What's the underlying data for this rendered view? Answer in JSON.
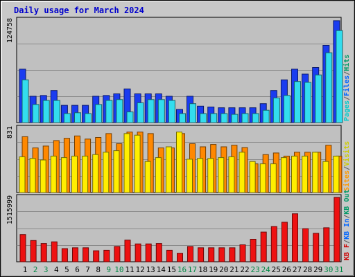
{
  "chart_data": {
    "type": "bar",
    "title": "Daily usage for March 2024",
    "days": [
      "1",
      "2",
      "3",
      "4",
      "5",
      "6",
      "7",
      "8",
      "9",
      "10",
      "11",
      "12",
      "13",
      "14",
      "15",
      "16",
      "17",
      "18",
      "19",
      "20",
      "21",
      "22",
      "23",
      "24",
      "25",
      "26",
      "27",
      "28",
      "29",
      "30",
      "31"
    ],
    "weekend_days": [
      "2",
      "3",
      "9",
      "10",
      "16",
      "17",
      "23",
      "24",
      "30",
      "31"
    ],
    "panels": [
      {
        "id": "hits",
        "ymax_label": "124758",
        "ymax": 124758,
        "legend": [
          {
            "text": "Pages",
            "color": "#00cccc"
          },
          {
            "text": "/",
            "color": "#555555"
          },
          {
            "text": "Files",
            "color": "#0066ff"
          },
          {
            "text": "/",
            "color": "#555555"
          },
          {
            "text": "Hits",
            "color": "#009966"
          }
        ],
        "series": [
          {
            "name": "Hits",
            "color": "#1a3cf0",
            "values": [
              65000,
              32000,
              33000,
              39000,
              21000,
              21000,
              21000,
              32000,
              33000,
              35000,
              41000,
              35000,
              35000,
              35000,
              32000,
              16000,
              32000,
              20000,
              19000,
              18000,
              18000,
              18000,
              18000,
              23000,
              39000,
              52000,
              65000,
              59000,
              67000,
              94000,
              124000
            ]
          },
          {
            "name": "Files",
            "color": "#1aa0e6",
            "values": [
              52000,
              22000,
              27000,
              27000,
              11000,
              12000,
              11000,
              22000,
              27000,
              28000,
              13000,
              24000,
              28000,
              28000,
              27000,
              11000,
              23000,
              11000,
              11000,
              11000,
              10000,
              11000,
              11000,
              15000,
              30000,
              33000,
              50000,
              49000,
              58000,
              85000,
              112000
            ]
          },
          {
            "name": "Pages",
            "color": "#33ddee",
            "values": [
              52000,
              22000,
              27000,
              27000,
              11000,
              12000,
              11000,
              22000,
              27000,
              28000,
              13000,
              24000,
              28000,
              28000,
              27000,
              11000,
              23000,
              11000,
              11000,
              11000,
              10000,
              11000,
              11000,
              15000,
              30000,
              33000,
              50000,
              49000,
              58000,
              85000,
              112000
            ]
          }
        ]
      },
      {
        "id": "visits",
        "ymax_label": "831",
        "ymax": 831,
        "legend": [
          {
            "text": "Sites",
            "color": "#ff9900"
          },
          {
            "text": "/",
            "color": "#555555"
          },
          {
            "text": "Visits",
            "color": "#cccc00"
          }
        ],
        "series": [
          {
            "name": "Sites",
            "color": "#ff8800",
            "values": [
              720,
              575,
              600,
              670,
              700,
              730,
              690,
              710,
              760,
              630,
              780,
              780,
              760,
              575,
              575,
              760,
              630,
              590,
              620,
              590,
              610,
              580,
              370,
              490,
              510,
              470,
              520,
              520,
              520,
              610,
              470
            ]
          },
          {
            "name": "Visits",
            "color": "#ffee00",
            "values": [
              460,
              440,
              420,
              470,
              450,
              470,
              470,
              490,
              520,
              540,
              760,
              740,
              400,
              450,
              590,
              780,
              430,
              440,
              440,
              450,
              460,
              520,
              400,
              370,
              370,
              450,
              470,
              470,
              520,
              400,
              470
            ]
          }
        ]
      },
      {
        "id": "kbytes",
        "ymax_label": "1515999",
        "ymax": 1515999,
        "legend": [
          {
            "text": "KB F",
            "color": "#cc0000"
          },
          {
            "text": "/",
            "color": "#555555"
          },
          {
            "text": "KB In",
            "color": "#0066ff"
          },
          {
            "text": "/",
            "color": "#555555"
          },
          {
            "text": "KB Out",
            "color": "#009966"
          }
        ],
        "series": [
          {
            "name": "KB F",
            "color": "#ee1111",
            "values": [
              640000,
              500000,
              430000,
              470000,
              310000,
              330000,
              330000,
              260000,
              270000,
              360000,
              510000,
              420000,
              420000,
              430000,
              270000,
              200000,
              360000,
              330000,
              330000,
              330000,
              330000,
              400000,
              530000,
              700000,
              830000,
              930000,
              1130000,
              780000,
              670000,
              800000,
              1515999
            ]
          }
        ]
      }
    ]
  }
}
